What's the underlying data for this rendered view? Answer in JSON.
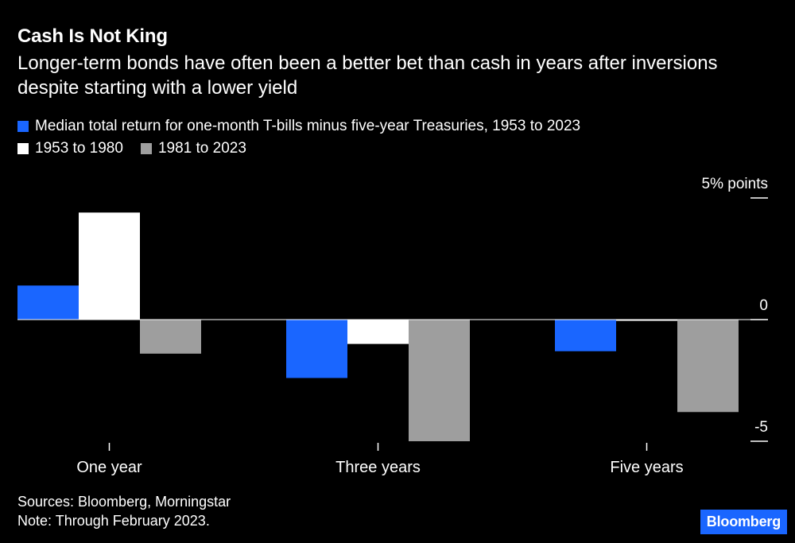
{
  "title": "Cash Is Not King",
  "subtitle": "Longer-term bonds have often been a better bet than cash in years after inversions despite starting with a lower yield",
  "legend": [
    {
      "label": "Median total return for one-month T-bills minus five-year Treasuries, 1953 to 2023",
      "color": "#1a66ff"
    },
    {
      "label": "1953 to 1980",
      "color": "#ffffff"
    },
    {
      "label": "1981 to 2023",
      "color": "#9e9e9e"
    }
  ],
  "sources": "Sources: Bloomberg, Morningstar",
  "note": "Note: Through February 2023.",
  "logo": "Bloomberg",
  "chart_data": {
    "type": "bar",
    "categories": [
      "One year",
      "Three years",
      "Five years"
    ],
    "series": [
      {
        "name": "Median total return for one-month T-bills minus five-year Treasuries, 1953 to 2023",
        "values": [
          1.4,
          -2.4,
          -1.3
        ],
        "color": "#1a66ff"
      },
      {
        "name": "1953 to 1980",
        "values": [
          4.4,
          -1.0,
          -0.05
        ],
        "color": "#ffffff"
      },
      {
        "name": "1981 to 2023",
        "values": [
          -1.4,
          -5.0,
          -3.8
        ],
        "color": "#9e9e9e"
      }
    ],
    "ylim": [
      -5,
      5
    ],
    "y_ticks": [
      {
        "value": 5,
        "label": "5% points"
      },
      {
        "value": 0,
        "label": "0"
      },
      {
        "value": -5,
        "label": "-5"
      }
    ],
    "grid": false,
    "legend_position": "top-left"
  }
}
